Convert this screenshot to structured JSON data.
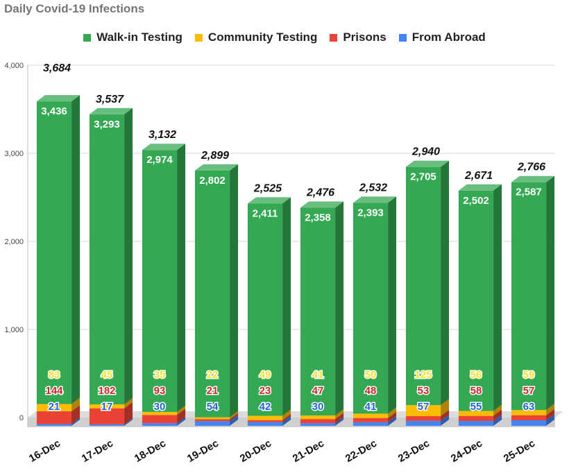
{
  "chart_data": {
    "type": "bar",
    "stacked": true,
    "title": "Daily Covid-19 Infections",
    "categories": [
      "16-Dec",
      "17-Dec",
      "18-Dec",
      "19-Dec",
      "20-Dec",
      "21-Dec",
      "22-Dec",
      "23-Dec",
      "24-Dec",
      "25-Dec"
    ],
    "series": [
      {
        "name": "From Abroad",
        "color": "#4285f4",
        "values": [
          21,
          17,
          30,
          54,
          42,
          30,
          41,
          57,
          55,
          63
        ],
        "labels": [
          "21",
          "17",
          "30",
          "54",
          "42",
          "30",
          "41",
          "57",
          "55",
          "63"
        ]
      },
      {
        "name": "Prisons",
        "color": "#ea4335",
        "values": [
          144,
          182,
          93,
          21,
          23,
          47,
          48,
          53,
          58,
          57
        ],
        "labels": [
          "144",
          "182",
          "93",
          "21",
          "23",
          "47",
          "48",
          "53",
          "58",
          "57"
        ]
      },
      {
        "name": "Community Testing",
        "color": "#fbbc04",
        "values": [
          83,
          45,
          35,
          22,
          49,
          41,
          50,
          125,
          56,
          59
        ],
        "labels": [
          "83",
          "45",
          "35",
          "22",
          "49",
          "41",
          "50",
          "125",
          "56",
          "59"
        ]
      },
      {
        "name": "Walk-in Testing",
        "color": "#34a853",
        "values": [
          3436,
          3293,
          2974,
          2802,
          2411,
          2358,
          2393,
          2705,
          2502,
          2587
        ],
        "labels": [
          "3,436",
          "3,293",
          "2,974",
          "2,802",
          "2,411",
          "2,358",
          "2,393",
          "2,705",
          "2,502",
          "2,587"
        ]
      }
    ],
    "legend_order": [
      "Walk-in Testing",
      "Community Testing",
      "Prisons",
      "From Abroad"
    ],
    "totals": [
      3684,
      3537,
      3132,
      2899,
      2525,
      2476,
      2532,
      2940,
      2671,
      2766
    ],
    "total_labels": [
      "3,684",
      "3,537",
      "3,132",
      "2,899",
      "2,525",
      "2,476",
      "2,532",
      "2,940",
      "2,671",
      "2,766"
    ],
    "ylim": [
      0,
      4000
    ],
    "yticks": [
      0,
      1000,
      2000,
      3000,
      4000
    ],
    "ytick_labels": [
      "0",
      "1,000",
      "2,000",
      "3,000",
      "4,000"
    ],
    "xlabel": "",
    "ylabel": "",
    "grid": true,
    "legend_position": "top",
    "style": "3d"
  }
}
